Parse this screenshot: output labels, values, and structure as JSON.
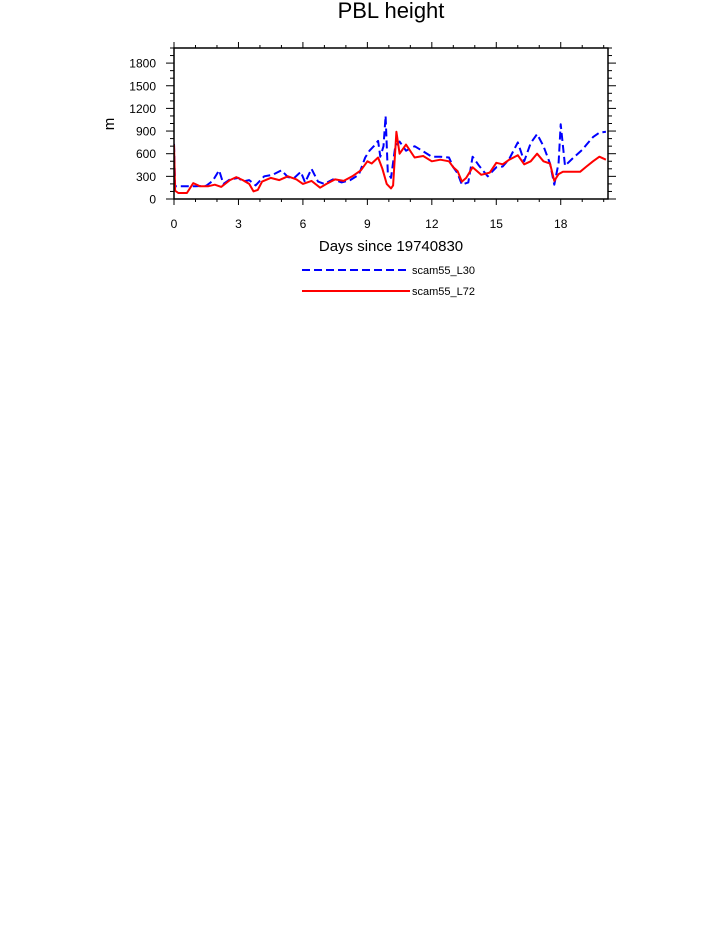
{
  "chart_data": {
    "type": "line",
    "title": "PBL height",
    "xlabel": "Days since 19740830",
    "ylabel": "m",
    "xlim": [
      0,
      20.2
    ],
    "ylim": [
      0,
      2000
    ],
    "xticks": [
      0,
      3,
      6,
      9,
      12,
      15,
      18
    ],
    "yticks": [
      0,
      300,
      600,
      900,
      1200,
      1500,
      1800
    ],
    "grid": false,
    "legend_position": "bottom-center",
    "series": [
      {
        "name": "scam55_L30",
        "color": "#0000ff",
        "style": "dashed",
        "points": [
          [
            0,
            730
          ],
          [
            0.05,
            170
          ],
          [
            0.5,
            170
          ],
          [
            1.0,
            170
          ],
          [
            1.5,
            175
          ],
          [
            1.8,
            240
          ],
          [
            2.1,
            380
          ],
          [
            2.3,
            200
          ],
          [
            2.6,
            260
          ],
          [
            3.0,
            280
          ],
          [
            3.2,
            230
          ],
          [
            3.5,
            250
          ],
          [
            3.8,
            180
          ],
          [
            4.2,
            300
          ],
          [
            4.6,
            320
          ],
          [
            5.0,
            380
          ],
          [
            5.3,
            290
          ],
          [
            5.6,
            280
          ],
          [
            5.9,
            360
          ],
          [
            6.1,
            220
          ],
          [
            6.4,
            400
          ],
          [
            6.7,
            230
          ],
          [
            7.0,
            200
          ],
          [
            7.4,
            260
          ],
          [
            7.8,
            220
          ],
          [
            8.2,
            250
          ],
          [
            8.6,
            320
          ],
          [
            8.9,
            550
          ],
          [
            9.1,
            640
          ],
          [
            9.3,
            700
          ],
          [
            9.5,
            770
          ],
          [
            9.6,
            560
          ],
          [
            9.75,
            700
          ],
          [
            9.85,
            1100
          ],
          [
            9.95,
            350
          ],
          [
            10.1,
            280
          ],
          [
            10.3,
            700
          ],
          [
            10.5,
            760
          ],
          [
            10.8,
            640
          ],
          [
            11.2,
            700
          ],
          [
            11.6,
            630
          ],
          [
            12.0,
            560
          ],
          [
            12.4,
            560
          ],
          [
            12.8,
            550
          ],
          [
            13.0,
            420
          ],
          [
            13.2,
            340
          ],
          [
            13.4,
            190
          ],
          [
            13.7,
            220
          ],
          [
            13.9,
            560
          ],
          [
            14.2,
            440
          ],
          [
            14.6,
            300
          ],
          [
            15.0,
            420
          ],
          [
            15.3,
            430
          ],
          [
            15.6,
            530
          ],
          [
            16.0,
            750
          ],
          [
            16.3,
            500
          ],
          [
            16.6,
            740
          ],
          [
            16.9,
            860
          ],
          [
            17.2,
            700
          ],
          [
            17.5,
            470
          ],
          [
            17.7,
            190
          ],
          [
            17.9,
            480
          ],
          [
            18.0,
            990
          ],
          [
            18.2,
            440
          ],
          [
            18.6,
            550
          ],
          [
            19.0,
            650
          ],
          [
            19.2,
            720
          ],
          [
            19.5,
            820
          ],
          [
            19.8,
            880
          ],
          [
            20.1,
            890
          ]
        ]
      },
      {
        "name": "scam55_L72",
        "color": "#ff0000",
        "style": "solid",
        "points": [
          [
            0,
            720
          ],
          [
            0.05,
            110
          ],
          [
            0.2,
            80
          ],
          [
            0.6,
            80
          ],
          [
            0.9,
            210
          ],
          [
            1.2,
            170
          ],
          [
            1.6,
            170
          ],
          [
            1.9,
            190
          ],
          [
            2.2,
            160
          ],
          [
            2.6,
            250
          ],
          [
            2.9,
            290
          ],
          [
            3.2,
            250
          ],
          [
            3.5,
            200
          ],
          [
            3.7,
            100
          ],
          [
            3.9,
            120
          ],
          [
            4.1,
            230
          ],
          [
            4.5,
            280
          ],
          [
            4.9,
            250
          ],
          [
            5.3,
            300
          ],
          [
            5.7,
            260
          ],
          [
            6.0,
            200
          ],
          [
            6.4,
            240
          ],
          [
            6.8,
            150
          ],
          [
            7.1,
            200
          ],
          [
            7.5,
            260
          ],
          [
            7.9,
            240
          ],
          [
            8.3,
            300
          ],
          [
            8.7,
            380
          ],
          [
            9.0,
            500
          ],
          [
            9.2,
            470
          ],
          [
            9.5,
            550
          ],
          [
            9.7,
            400
          ],
          [
            9.9,
            200
          ],
          [
            10.1,
            140
          ],
          [
            10.2,
            180
          ],
          [
            10.35,
            890
          ],
          [
            10.5,
            600
          ],
          [
            10.8,
            720
          ],
          [
            11.2,
            550
          ],
          [
            11.6,
            570
          ],
          [
            12.0,
            500
          ],
          [
            12.4,
            520
          ],
          [
            12.8,
            500
          ],
          [
            13.0,
            420
          ],
          [
            13.2,
            370
          ],
          [
            13.4,
            230
          ],
          [
            13.6,
            280
          ],
          [
            13.9,
            420
          ],
          [
            14.3,
            320
          ],
          [
            14.7,
            350
          ],
          [
            15.0,
            480
          ],
          [
            15.3,
            460
          ],
          [
            15.6,
            520
          ],
          [
            16.0,
            580
          ],
          [
            16.3,
            460
          ],
          [
            16.6,
            500
          ],
          [
            16.9,
            600
          ],
          [
            17.2,
            500
          ],
          [
            17.5,
            470
          ],
          [
            17.7,
            240
          ],
          [
            17.9,
            330
          ],
          [
            18.1,
            360
          ],
          [
            18.5,
            360
          ],
          [
            18.9,
            360
          ],
          [
            19.2,
            430
          ],
          [
            19.5,
            500
          ],
          [
            19.8,
            560
          ],
          [
            20.1,
            520
          ]
        ]
      }
    ]
  }
}
